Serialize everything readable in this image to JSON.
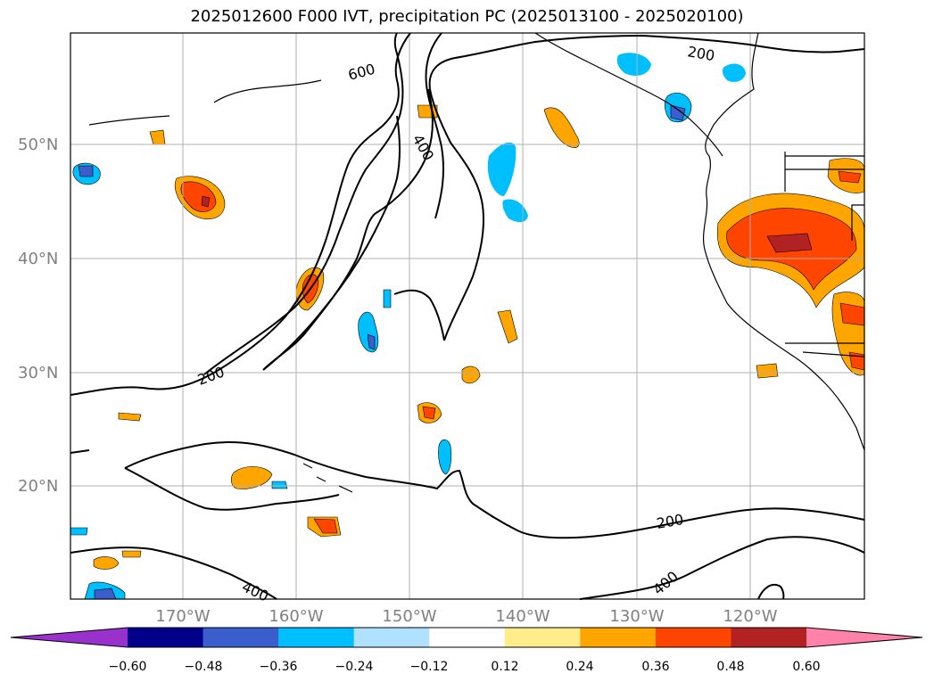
{
  "title": "2025012600 F000 IVT, precipitation PC (2025013100 - 2025020100)",
  "map": {
    "lat_labels": [
      "50°N",
      "40°N",
      "30°N",
      "20°N"
    ],
    "lon_labels": [
      "170°W",
      "160°W",
      "150°W",
      "140°W",
      "130°W",
      "120°W"
    ],
    "ivt_contour_labels": [
      "600",
      "400",
      "200",
      "200",
      "400",
      "200",
      "400"
    ]
  },
  "colorbar": {
    "ticks": [
      "−0.60",
      "−0.48",
      "−0.36",
      "−0.24",
      "−0.12",
      "0.12",
      "0.24",
      "0.36",
      "0.48",
      "0.60"
    ],
    "colors": [
      "#9932cc",
      "#00008b",
      "#3a5fcd",
      "#00bfff",
      "#b0e2ff",
      "#ffffff",
      "#ffec8b",
      "#ffa500",
      "#ff4500",
      "#b22222",
      "#ff82ab"
    ]
  }
}
